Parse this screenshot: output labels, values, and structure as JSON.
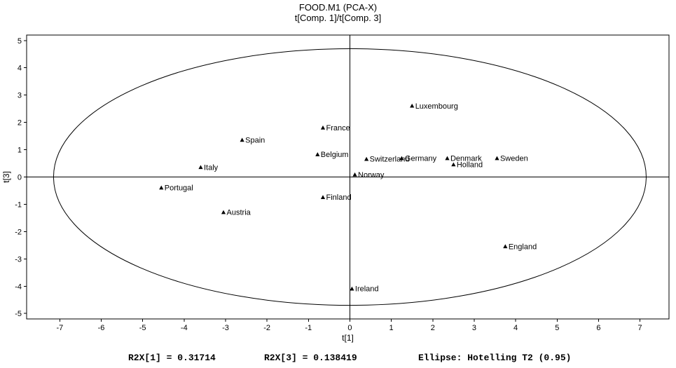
{
  "header": {
    "title": "FOOD.M1 (PCA-X)",
    "subtitle": "t[Comp. 1]/t[Comp. 3]"
  },
  "footer": {
    "r2x1": "R2X[1] = 0.31714",
    "r2x3": "R2X[3] = 0.138419",
    "ellipse": "Ellipse: Hotelling T2 (0.95)"
  },
  "chart_data": {
    "type": "scatter",
    "title": "FOOD.M1 (PCA-X)",
    "subtitle": "t[Comp. 1]/t[Comp. 3]",
    "xlabel": "t[1]",
    "ylabel": "t[3]",
    "xlim": [
      -7.8,
      7.7
    ],
    "ylim": [
      -5.2,
      5.2
    ],
    "xticks": [
      -7,
      -6,
      -5,
      -4,
      -3,
      -2,
      -1,
      0,
      1,
      2,
      3,
      4,
      5,
      6,
      7
    ],
    "yticks": [
      -5,
      -4,
      -3,
      -2,
      -1,
      0,
      1,
      2,
      3,
      4,
      5
    ],
    "grid": false,
    "legend": "none",
    "marker": "triangle-up",
    "marker_color": "#000000",
    "ellipse": {
      "cx": 0,
      "cy": 0,
      "rx": 7.15,
      "ry": 4.7,
      "label": "Hotelling T2 (0.95)"
    },
    "points": [
      {
        "label": "Luxembourg",
        "x": 1.5,
        "y": 2.6
      },
      {
        "label": "France",
        "x": -0.65,
        "y": 1.8
      },
      {
        "label": "Spain",
        "x": -2.6,
        "y": 1.35
      },
      {
        "label": "Belgium",
        "x": -0.78,
        "y": 0.82
      },
      {
        "label": "Switzerland",
        "x": 0.4,
        "y": 0.65
      },
      {
        "label": "Germany",
        "x": 1.25,
        "y": 0.68
      },
      {
        "label": "Denmark",
        "x": 2.35,
        "y": 0.68
      },
      {
        "label": "Sweden",
        "x": 3.55,
        "y": 0.68
      },
      {
        "label": "Holland",
        "x": 2.5,
        "y": 0.45
      },
      {
        "label": "Italy",
        "x": -3.6,
        "y": 0.35
      },
      {
        "label": "Norway",
        "x": 0.12,
        "y": 0.08
      },
      {
        "label": "Portugal",
        "x": -4.55,
        "y": -0.4
      },
      {
        "label": "Finland",
        "x": -0.65,
        "y": -0.75
      },
      {
        "label": "Austria",
        "x": -3.05,
        "y": -1.3
      },
      {
        "label": "England",
        "x": 3.75,
        "y": -2.55
      },
      {
        "label": "Ireland",
        "x": 0.05,
        "y": -4.1
      }
    ]
  }
}
